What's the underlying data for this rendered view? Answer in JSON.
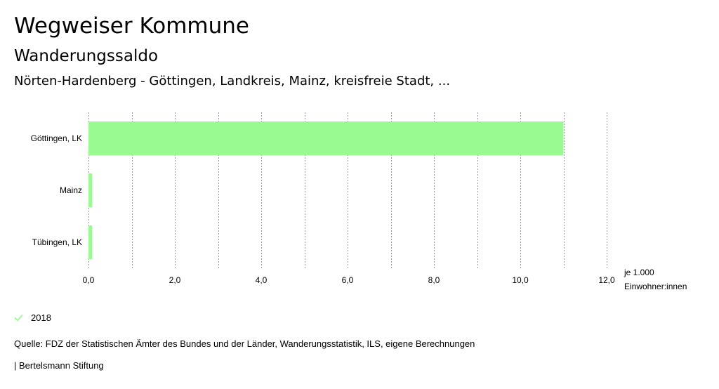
{
  "header": {
    "title": "Wegweiser Kommune",
    "subtitle": "Wanderungssaldo",
    "regions": "Nörten-Hardenberg - Göttingen, Landkreis, Mainz, kreisfreie Stadt, ..."
  },
  "legend": {
    "items": [
      {
        "label": "2018",
        "color": "#98fa90",
        "icon": "check-icon"
      }
    ]
  },
  "footer": {
    "source": "Quelle: FDZ der Statistischen Ämter des Bundes und der Länder, Wanderungsstatistik, ILS, eigene Berechnungen",
    "credit": "| Bertelsmann Stiftung"
  },
  "chart_data": {
    "type": "bar",
    "orientation": "horizontal",
    "title": "Wanderungssaldo",
    "categories": [
      "Göttingen, LK",
      "Mainz",
      "Tübingen, LK"
    ],
    "series": [
      {
        "name": "2018",
        "values": [
          11.0,
          0.05,
          0.05
        ],
        "color": "#98fa90"
      }
    ],
    "xlim": [
      0,
      12
    ],
    "xticks": [
      0,
      2,
      4,
      6,
      8,
      10,
      12
    ],
    "xtick_labels": [
      "0,0",
      "2,0",
      "4,0",
      "6,0",
      "8,0",
      "10,0",
      "12,0"
    ],
    "xlabel_lines": [
      "je 1.000",
      "Einwohner:innen"
    ],
    "grid": true,
    "grid_color": "#999999"
  }
}
